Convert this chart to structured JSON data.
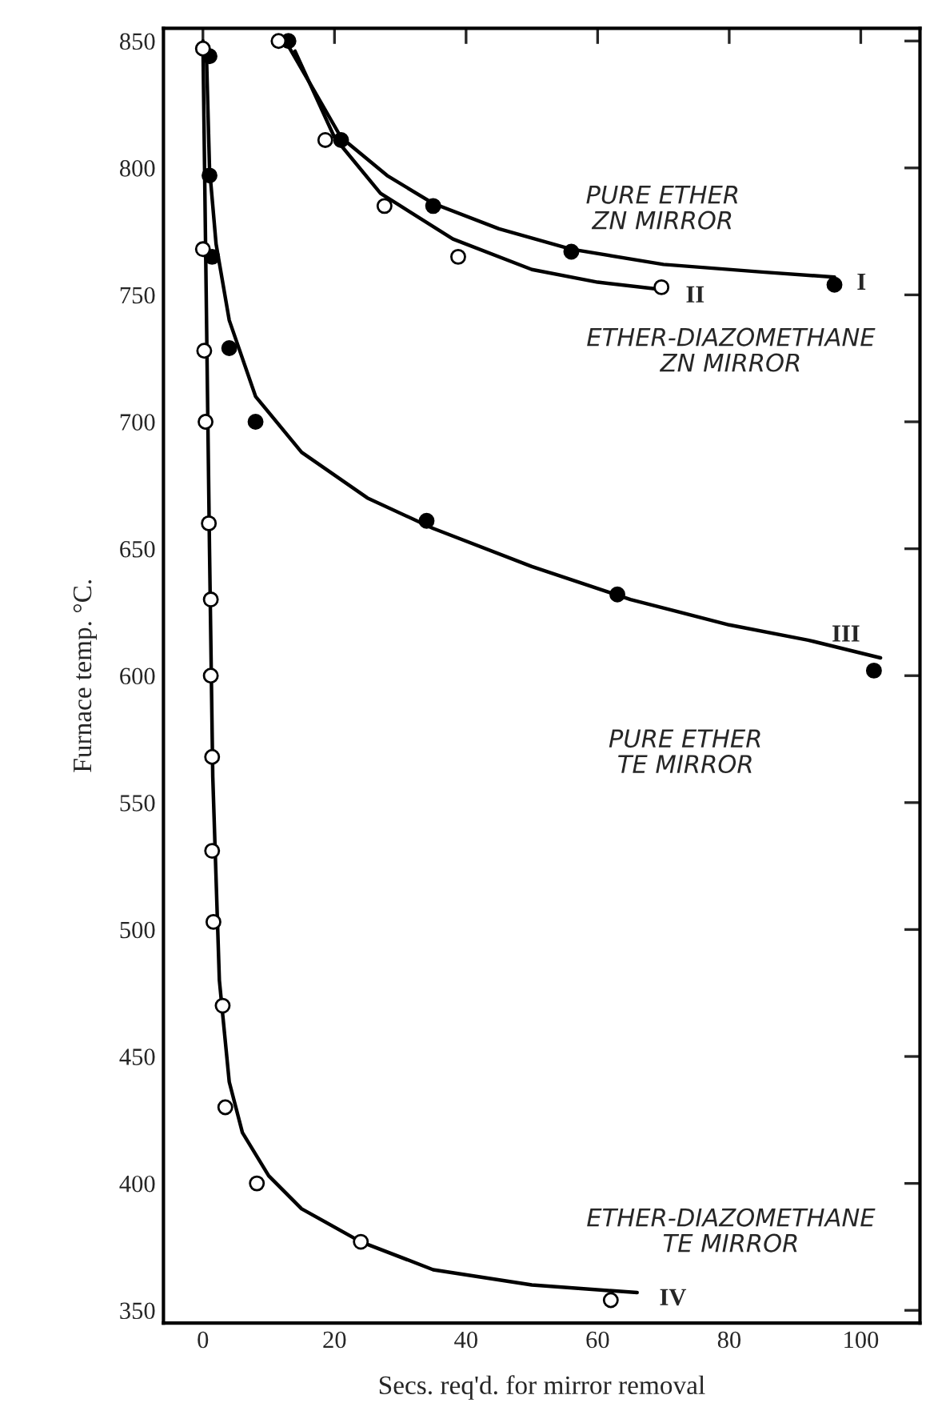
{
  "chart_data": {
    "type": "scatter",
    "xlabel": "Secs. req'd. for mirror removal",
    "ylabel": "Furnace temp. °C.",
    "xlim": [
      -6,
      109
    ],
    "ylim": [
      345,
      855
    ],
    "xticks": [
      0,
      20,
      40,
      60,
      80,
      100
    ],
    "yticks": [
      350,
      400,
      450,
      500,
      550,
      600,
      650,
      700,
      750,
      800,
      850
    ],
    "grid": false,
    "marker": "circle",
    "series": [
      {
        "color": "#000000",
        "x": [
          13,
          21,
          35,
          56,
          96
        ],
        "values": [
          850,
          811,
          785,
          767,
          754
        ]
      },
      {
        "color": "#ffffff",
        "x": [
          11.5,
          18.6,
          27.6,
          38.8,
          69.7
        ],
        "values": [
          850,
          811,
          785,
          765,
          753
        ]
      },
      {
        "color": "#000000",
        "x": [
          1,
          1,
          1.4,
          4,
          8,
          34,
          63,
          102
        ],
        "values": [
          844,
          797,
          765,
          729,
          700,
          661,
          632,
          602
        ]
      },
      {
        "color": "#ffffff",
        "x": [
          0,
          0,
          0.2,
          0.4,
          0.9,
          1.2,
          1.2,
          1.4,
          1.4,
          1.6,
          3,
          3.4,
          8.2,
          24,
          62
        ],
        "values": [
          847,
          768,
          728,
          700,
          660,
          630,
          600,
          568,
          531,
          503,
          470,
          430,
          400,
          377,
          354
        ]
      },
      {
        "type": "line",
        "marker": "none",
        "name": "I",
        "color": "#000000",
        "x": [
          13,
          17,
          21,
          28,
          35,
          45,
          56,
          70,
          85,
          96
        ],
        "values": [
          848,
          830,
          812,
          797,
          786,
          776,
          768,
          762,
          759,
          757
        ]
      },
      {
        "type": "line",
        "marker": "none",
        "name": "II",
        "color": "#000000",
        "x": [
          14,
          20,
          27,
          38,
          50,
          60,
          70
        ],
        "values": [
          846,
          812,
          790,
          772,
          760,
          755,
          752
        ]
      },
      {
        "type": "line",
        "marker": "none",
        "name": "III",
        "color": "#000000",
        "x": [
          0.5,
          1,
          2,
          4,
          8,
          15,
          25,
          35,
          50,
          65,
          80,
          92,
          103
        ],
        "values": [
          848,
          800,
          770,
          740,
          710,
          688,
          670,
          658,
          643,
          630,
          620,
          614,
          607
        ]
      },
      {
        "type": "line",
        "marker": "none",
        "name": "IV",
        "color": "#000000",
        "x": [
          0,
          0.5,
          1,
          1.5,
          2.5,
          4,
          6,
          10,
          15,
          24,
          35,
          50,
          66
        ],
        "values": [
          850,
          750,
          650,
          560,
          480,
          440,
          420,
          403,
          390,
          377,
          366,
          360,
          357
        ]
      }
    ],
    "annotations": [
      "PURE ETHER\nZN MIRROR",
      "ETHER-DIAZOMETHANE\nZN MIRROR",
      "PURE ETHER\nTE MIRROR",
      "ETHER-DIAZOMETHANE\nTE MIRROR"
    ]
  }
}
